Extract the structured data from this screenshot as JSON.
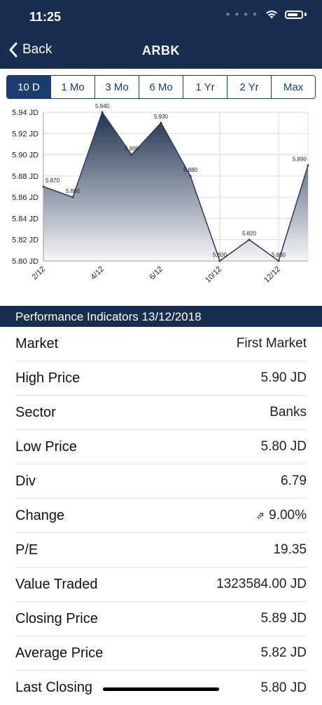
{
  "status": {
    "time": "11:25"
  },
  "nav": {
    "back_label": "Back",
    "title": "ARBK"
  },
  "ranges": [
    {
      "label": "10 D",
      "active": true
    },
    {
      "label": "1 Mo",
      "active": false
    },
    {
      "label": "3 Mo",
      "active": false
    },
    {
      "label": "6 Mo",
      "active": false
    },
    {
      "label": "1 Yr",
      "active": false
    },
    {
      "label": "2 Yr",
      "active": false
    },
    {
      "label": "Max",
      "active": false
    }
  ],
  "chart_data": {
    "type": "area",
    "title": "",
    "xlabel": "",
    "ylabel": "",
    "x_ticks": [
      "2/12",
      "4/12",
      "6/12",
      "10/12",
      "12/12"
    ],
    "y_ticks": [
      "5.80 JD",
      "5.82 JD",
      "5.84 JD",
      "5.86 JD",
      "5.88 JD",
      "5.90 JD",
      "5.92 JD",
      "5.94 JD"
    ],
    "ylim": [
      5.8,
      5.94
    ],
    "series": [
      {
        "points": [
          {
            "label": "5.870",
            "value": 5.87
          },
          {
            "label": "5.860",
            "value": 5.86
          },
          {
            "label": "5.940",
            "value": 5.94
          },
          {
            "label": "5.900",
            "value": 5.9
          },
          {
            "label": "5.930",
            "value": 5.93
          },
          {
            "label": "5.880",
            "value": 5.88
          },
          {
            "label": "5.800",
            "value": 5.8
          },
          {
            "label": "5.820",
            "value": 5.82
          },
          {
            "label": "5.800",
            "value": 5.8
          },
          {
            "label": "5.890",
            "value": 5.89
          }
        ]
      }
    ],
    "grid": true,
    "colors": {
      "line": "#2b3a55",
      "fill_top": "#1f3250",
      "fill_bottom": "#f4f5f8"
    }
  },
  "performance": {
    "heading": "Performance Indicators 13/12/2018",
    "rows": [
      {
        "label": "Market",
        "value": "First Market"
      },
      {
        "label": "High Price",
        "value": "5.90 JD"
      },
      {
        "label": "Sector",
        "value": "Banks"
      },
      {
        "label": "Low Price",
        "value": "5.80 JD"
      },
      {
        "label": "Div",
        "value": "6.79"
      },
      {
        "label": "Change",
        "value": "9.00%",
        "icon": "arrow-up-right-icon"
      },
      {
        "label": "P/E",
        "value": "19.35"
      },
      {
        "label": "Value Traded",
        "value": "1323584.00 JD"
      },
      {
        "label": "Closing Price",
        "value": "5.89 JD"
      },
      {
        "label": "Average Price",
        "value": "5.82 JD"
      },
      {
        "label": "Last Closing",
        "value": "5.80 JD"
      }
    ]
  }
}
